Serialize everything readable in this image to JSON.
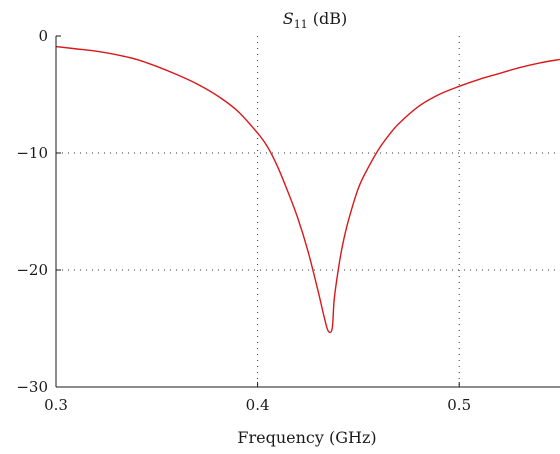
{
  "chart_data": {
    "type": "line",
    "title_main": "S",
    "title_sub": "11",
    "title_unit": " (dB)",
    "xlabel": "Frequency (GHz)",
    "ylabel": "",
    "xlim": [
      0.3,
      0.55
    ],
    "ylim": [
      -30,
      0
    ],
    "x_ticks": [
      0.3,
      0.4,
      0.5
    ],
    "x_tick_labels": [
      "0.3",
      "0.4",
      "0.5"
    ],
    "y_ticks": [
      0,
      -10,
      -20,
      -30
    ],
    "y_tick_labels": [
      "0",
      "−10",
      "−20",
      "−30"
    ],
    "grid": true,
    "series": [
      {
        "color": "#d7191c",
        "x": [
          0.3,
          0.31,
          0.32,
          0.33,
          0.34,
          0.35,
          0.36,
          0.37,
          0.38,
          0.39,
          0.4,
          0.405,
          0.41,
          0.415,
          0.42,
          0.425,
          0.43,
          0.433,
          0.435,
          0.437,
          0.438,
          0.44,
          0.442,
          0.445,
          0.45,
          0.455,
          0.46,
          0.465,
          0.47,
          0.48,
          0.49,
          0.5,
          0.51,
          0.52,
          0.53,
          0.54,
          0.55
        ],
        "y": [
          -0.9,
          -1.1,
          -1.3,
          -1.6,
          -2.0,
          -2.6,
          -3.3,
          -4.1,
          -5.1,
          -6.4,
          -8.3,
          -9.5,
          -11.2,
          -13.3,
          -15.6,
          -18.4,
          -21.8,
          -24.0,
          -25.2,
          -25.0,
          -22.5,
          -20.0,
          -18.0,
          -15.8,
          -13.0,
          -11.2,
          -9.7,
          -8.5,
          -7.5,
          -6.0,
          -5.0,
          -4.3,
          -3.7,
          -3.2,
          -2.7,
          -2.3,
          -2.0
        ]
      }
    ]
  }
}
